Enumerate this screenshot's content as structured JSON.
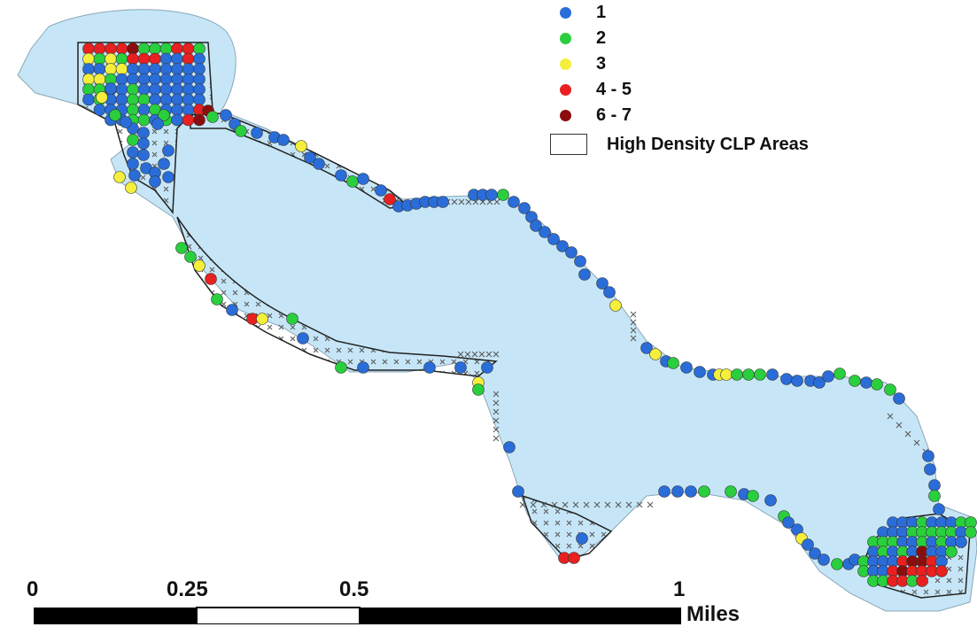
{
  "legend": {
    "items": [
      {
        "label": "1",
        "color": "#2a6dd9"
      },
      {
        "label": "2",
        "color": "#29cf3d"
      },
      {
        "label": "3",
        "color": "#f5ee3c"
      },
      {
        "label": "4 - 5",
        "color": "#e8201f"
      },
      {
        "label": "6 - 7",
        "color": "#8c0d0d"
      }
    ],
    "area_label": "High Density CLP Areas"
  },
  "scale_bar": {
    "ticks": [
      "0",
      "0.25",
      "0.5",
      "1"
    ],
    "unit": "Miles"
  },
  "colors": {
    "water": "#c6e6f7",
    "outline": "#333333",
    "x_marker": "#555555"
  }
}
